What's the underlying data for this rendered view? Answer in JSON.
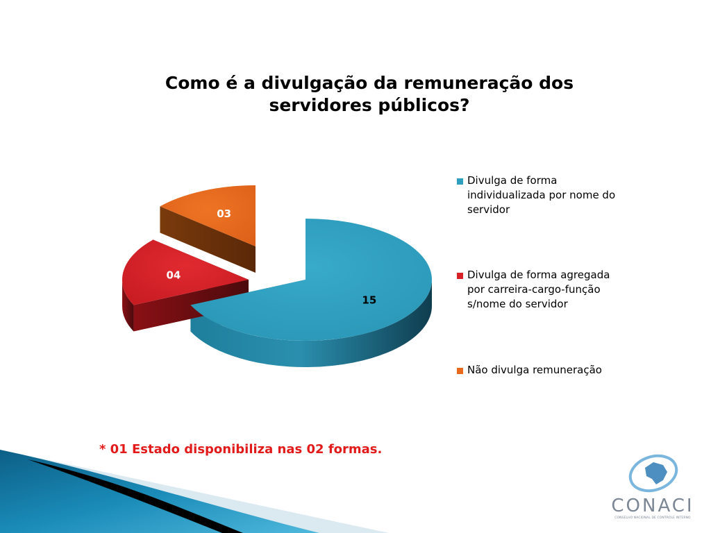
{
  "slide": {
    "title_line1": "Como é a divulgação da remuneração dos",
    "title_line2": "servidores públicos?",
    "footnote": "* 01 Estado disponibiliza nas 02 formas.",
    "logo_text": "CONACI",
    "logo_subtext": "CONSELHO NACIONAL DE CONTROLE INTERNO"
  },
  "chart_data": {
    "type": "pie",
    "style": "3d-exploded",
    "title": "Como é a divulgação da remuneração dos servidores públicos?",
    "categories": [
      "Divulga de forma individualizada por nome do servidor",
      "Divulga de forma agregada por carreira-cargo-função s/nome do servidor",
      "Não divulga remuneração"
    ],
    "values": [
      15,
      4,
      3
    ],
    "data_labels": [
      "15",
      "04",
      "03"
    ],
    "colors": [
      "#2f9fbf",
      "#d82027",
      "#e8691c"
    ],
    "legend_position": "right"
  },
  "legend": {
    "items": [
      {
        "line1": "Divulga de forma",
        "line2": "individualizada por nome do",
        "line3": "servidor",
        "color": "#2f9fbf"
      },
      {
        "line1": "Divulga de forma agregada",
        "line2": "por carreira-cargo-função",
        "line3": "s/nome do servidor",
        "color": "#d82027"
      },
      {
        "line1": "Não divulga remuneração",
        "line2": "",
        "line3": "",
        "color": "#e8691c"
      }
    ]
  }
}
